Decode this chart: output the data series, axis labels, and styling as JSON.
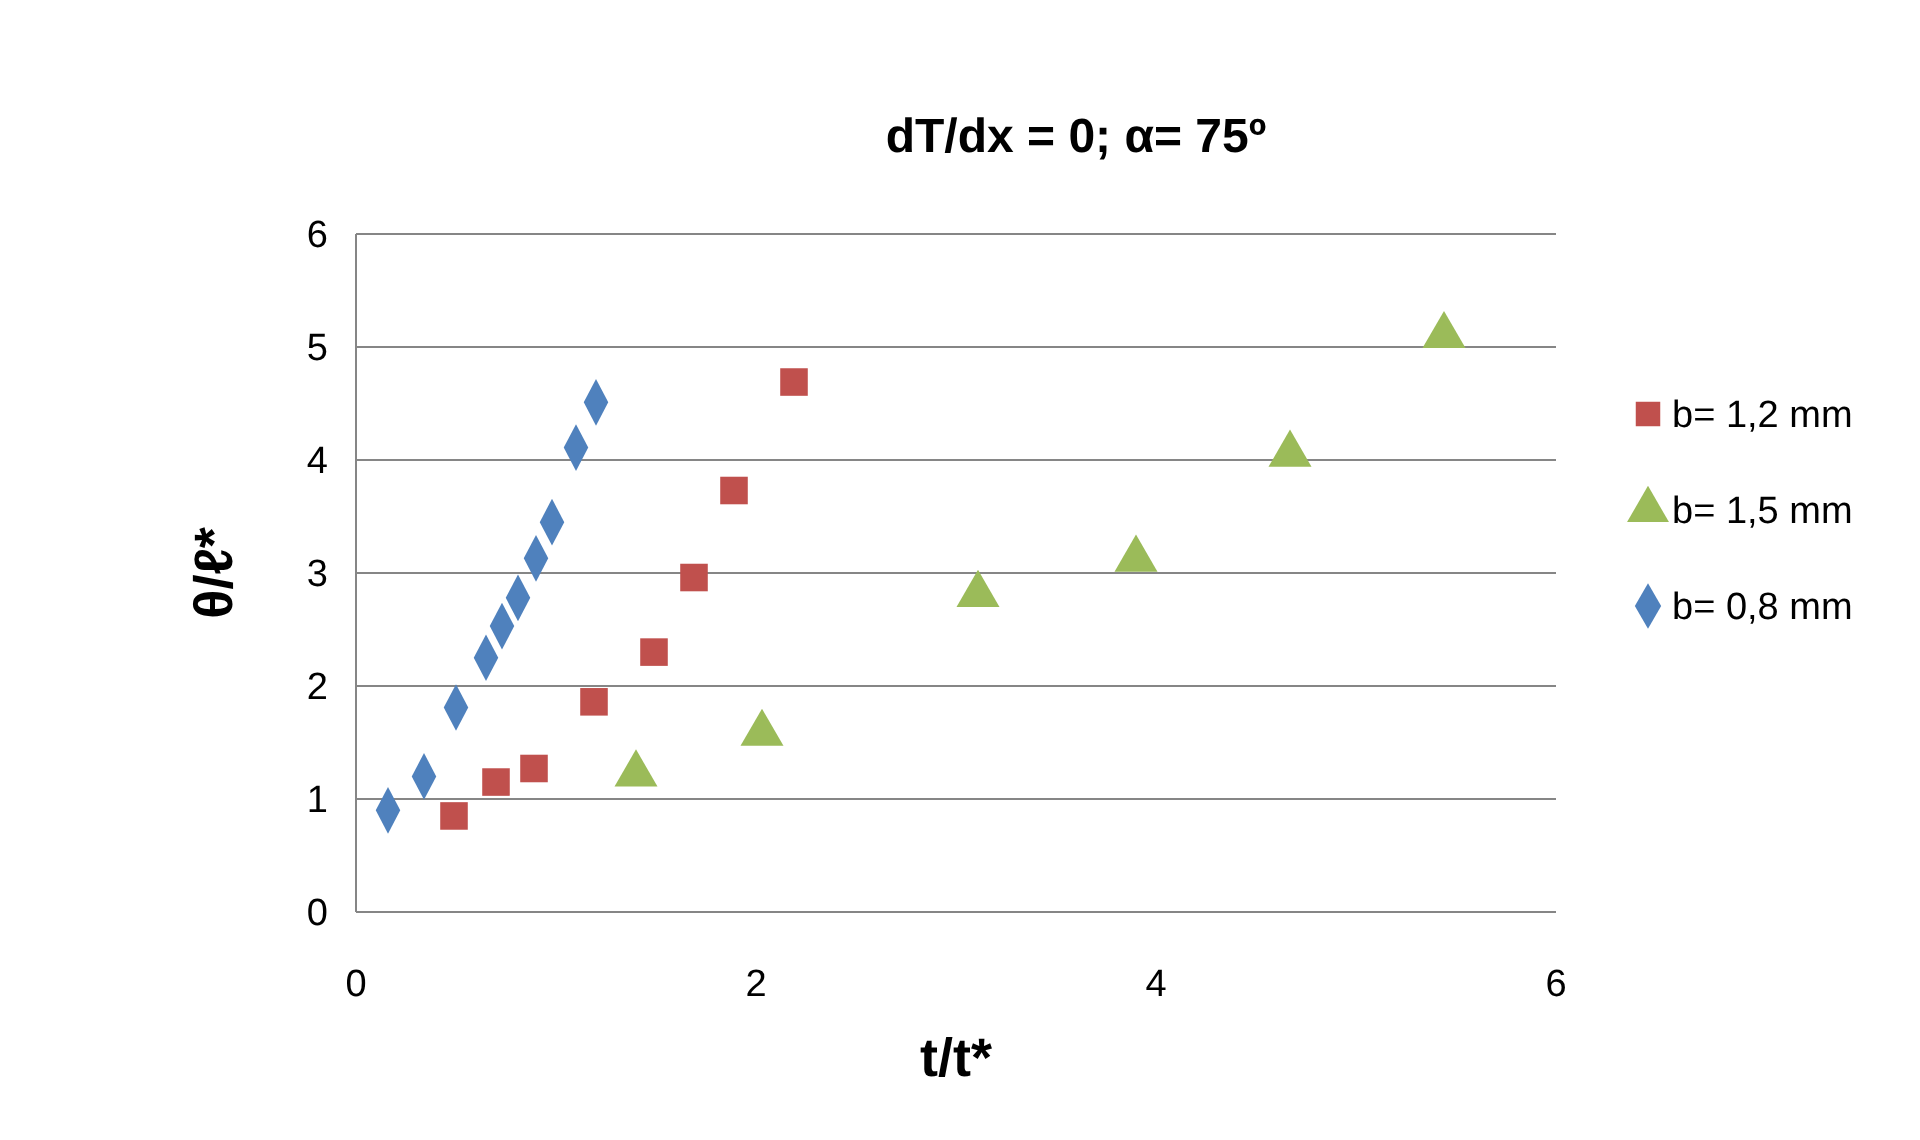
{
  "chart_data": {
    "type": "scatter",
    "title": "dT/dx = 0; α= 75º",
    "xlabel": "t/t*",
    "ylabel": "θ/ℓ*",
    "xlim": [
      0,
      6
    ],
    "xticks": [
      0,
      2,
      4,
      6
    ],
    "ylim": [
      0,
      6
    ],
    "yticks": [
      0,
      1,
      2,
      3,
      4,
      5,
      6
    ],
    "grid": "y",
    "legend": "right",
    "series": [
      {
        "name": "b= 1,2 mm",
        "color": "#c0504d",
        "marker": "square",
        "x": [
          0.49,
          0.7,
          0.89,
          1.19,
          1.49,
          1.69,
          1.89,
          2.19
        ],
        "values": [
          0.85,
          1.15,
          1.27,
          1.86,
          2.3,
          2.96,
          3.73,
          4.69
        ]
      },
      {
        "name": "b= 1,5 mm",
        "color": "#9bbb59",
        "marker": "triangle",
        "x": [
          1.4,
          2.03,
          3.11,
          3.9,
          4.67,
          5.44
        ],
        "values": [
          1.22,
          1.58,
          2.81,
          3.12,
          4.05,
          5.1
        ]
      },
      {
        "name": "b= 0,8 mm",
        "color": "#4f81bd",
        "marker": "diamond",
        "x": [
          0.16,
          0.34,
          0.5,
          0.65,
          0.73,
          0.81,
          0.9,
          0.98,
          1.1,
          1.2
        ],
        "values": [
          0.9,
          1.2,
          1.81,
          2.25,
          2.53,
          2.78,
          3.13,
          3.45,
          4.11,
          4.51
        ]
      }
    ]
  }
}
